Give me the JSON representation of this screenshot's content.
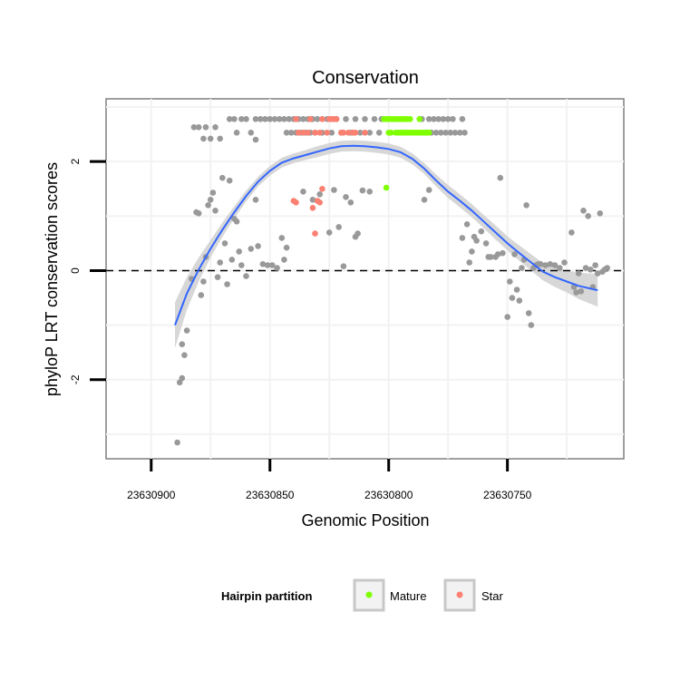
{
  "chart_data": {
    "type": "scatter",
    "title": "Conservation",
    "xlabel": "Genomic Position",
    "ylabel": "phyloP LRT conservation scores",
    "xlim": [
      23630919,
      23630701
    ],
    "xreversed": true,
    "ylim": [
      -3.45,
      3.15
    ],
    "xticks": [
      {
        "value": 23630900,
        "label": "23630900"
      },
      {
        "value": 23630850,
        "label": "23630850"
      },
      {
        "value": 23630800,
        "label": "23630800"
      },
      {
        "value": 23630750,
        "label": "23630750"
      }
    ],
    "yticks": [
      {
        "value": 2,
        "label": "2"
      },
      {
        "value": 0,
        "label": "0"
      },
      {
        "value": -2,
        "label": "-2"
      }
    ],
    "grid": true,
    "reference_line": {
      "y": 0,
      "style": "dashed"
    },
    "colors": {
      "Other": "#999999",
      "Mature": "#7fff00",
      "Star": "#fa8072",
      "smooth": "#3366ff",
      "band": "#d3d3d3"
    },
    "series": [
      {
        "name": "Other",
        "points": [
          [
            23630889,
            -3.15
          ],
          [
            23630888,
            -2.05
          ],
          [
            23630887,
            -1.97
          ],
          [
            23630887,
            -1.35
          ],
          [
            23630886,
            -1.55
          ],
          [
            23630885,
            -1.1
          ],
          [
            23630883,
            -0.15
          ],
          [
            23630881,
            1.07
          ],
          [
            23630880,
            1.05
          ],
          [
            23630879,
            -0.45
          ],
          [
            23630878,
            -0.2
          ],
          [
            23630877,
            0.25
          ],
          [
            23630876,
            1.2
          ],
          [
            23630875,
            1.3
          ],
          [
            23630874,
            1.43
          ],
          [
            23630873,
            1.1
          ],
          [
            23630872,
            -0.12
          ],
          [
            23630871,
            0.15
          ],
          [
            23630870,
            1.7
          ],
          [
            23630869,
            0.5
          ],
          [
            23630868,
            -0.25
          ],
          [
            23630867,
            1.65
          ],
          [
            23630866,
            0.2
          ],
          [
            23630865,
            0.95
          ],
          [
            23630864,
            0.9
          ],
          [
            23630863,
            0.35
          ],
          [
            23630862,
            0.1
          ],
          [
            23630860,
            -0.1
          ],
          [
            23630858,
            0.4
          ],
          [
            23630856,
            1.3
          ],
          [
            23630856,
            2.4
          ],
          [
            23630855,
            0.45
          ],
          [
            23630853,
            0.12
          ],
          [
            23630851,
            0.1
          ],
          [
            23630849,
            0.1
          ],
          [
            23630847,
            0.05
          ],
          [
            23630845,
            0.6
          ],
          [
            23630844,
            0.2
          ],
          [
            23630843,
            0.42
          ],
          [
            23630836,
            1.45
          ],
          [
            23630832,
            1.3
          ],
          [
            23630829,
            1.4
          ],
          [
            23630825,
            0.7
          ],
          [
            23630823,
            1.48
          ],
          [
            23630821,
            0.8
          ],
          [
            23630819,
            0.08
          ],
          [
            23630818,
            1.35
          ],
          [
            23630816,
            1.25
          ],
          [
            23630814,
            0.62
          ],
          [
            23630813,
            0.68
          ],
          [
            23630811,
            1.47
          ],
          [
            23630808,
            1.45
          ],
          [
            23630785,
            1.3
          ],
          [
            23630783,
            1.48
          ],
          [
            23630769,
            0.6
          ],
          [
            23630767,
            0.85
          ],
          [
            23630766,
            0.15
          ],
          [
            23630765,
            0.35
          ],
          [
            23630764,
            0.62
          ],
          [
            23630763,
            0.55
          ],
          [
            23630761,
            0.72
          ],
          [
            23630759,
            0.5
          ],
          [
            23630758,
            0.25
          ],
          [
            23630757,
            0.25
          ],
          [
            23630755,
            0.25
          ],
          [
            23630754,
            0.3
          ],
          [
            23630753,
            1.7
          ],
          [
            23630752,
            0.32
          ],
          [
            23630750,
            -0.85
          ],
          [
            23630749,
            -0.2
          ],
          [
            23630748,
            -0.5
          ],
          [
            23630747,
            0.3
          ],
          [
            23630746,
            -0.35
          ],
          [
            23630745,
            -0.55
          ],
          [
            23630744,
            0.05
          ],
          [
            23630743,
            0.2
          ],
          [
            23630742,
            1.2
          ],
          [
            23630741,
            -0.78
          ],
          [
            23630740,
            -1.0
          ],
          [
            23630739,
            0.05
          ],
          [
            23630738,
            0.1
          ],
          [
            23630737,
            0.12
          ],
          [
            23630736,
            0.12
          ],
          [
            23630734,
            0.1
          ],
          [
            23630732,
            0.12
          ],
          [
            23630730,
            0.1
          ],
          [
            23630728,
            0.05
          ],
          [
            23630726,
            0.15
          ],
          [
            23630723,
            0.7
          ],
          [
            23630722,
            -0.3
          ],
          [
            23630721,
            -0.4
          ],
          [
            23630720,
            -0.05
          ],
          [
            23630719,
            -0.38
          ],
          [
            23630718,
            1.1
          ],
          [
            23630717,
            0.05
          ],
          [
            23630716,
            1.0
          ],
          [
            23630715,
            0.02
          ],
          [
            23630714,
            -0.3
          ],
          [
            23630713,
            0.1
          ],
          [
            23630712,
            -0.05
          ],
          [
            23630711,
            1.05
          ],
          [
            23630710,
            -0.02
          ],
          [
            23630709,
            0.02
          ],
          [
            23630708,
            0.05
          ],
          [
            23630882,
            2.63
          ],
          [
            23630880,
            2.63
          ],
          [
            23630878,
            2.42
          ],
          [
            23630877,
            2.63
          ],
          [
            23630875,
            2.42
          ],
          [
            23630873,
            2.63
          ],
          [
            23630871,
            2.42
          ],
          [
            23630867,
            2.78
          ],
          [
            23630865,
            2.78
          ],
          [
            23630864,
            2.53
          ],
          [
            23630862,
            2.78
          ],
          [
            23630860,
            2.78
          ],
          [
            23630858,
            2.53
          ],
          [
            23630856,
            2.78
          ],
          [
            23630854,
            2.78
          ],
          [
            23630852,
            2.78
          ],
          [
            23630850,
            2.78
          ],
          [
            23630848,
            2.78
          ],
          [
            23630846,
            2.78
          ],
          [
            23630844,
            2.78
          ],
          [
            23630843,
            2.53
          ],
          [
            23630842,
            2.78
          ],
          [
            23630841,
            2.53
          ],
          [
            23630840,
            2.78
          ],
          [
            23630839,
            2.53
          ],
          [
            23630838,
            2.78
          ],
          [
            23630837,
            2.53
          ],
          [
            23630836,
            2.78
          ],
          [
            23630835,
            2.53
          ],
          [
            23630834,
            2.78
          ],
          [
            23630833,
            2.53
          ],
          [
            23630832,
            2.78
          ],
          [
            23630831,
            2.53
          ],
          [
            23630830,
            2.78
          ],
          [
            23630828,
            2.53
          ],
          [
            23630826,
            2.78
          ],
          [
            23630824,
            2.53
          ],
          [
            23630822,
            2.78
          ],
          [
            23630820,
            2.53
          ],
          [
            23630818,
            2.78
          ],
          [
            23630816,
            2.53
          ],
          [
            23630814,
            2.78
          ],
          [
            23630812,
            2.53
          ],
          [
            23630810,
            2.78
          ],
          [
            23630808,
            2.53
          ],
          [
            23630806,
            2.78
          ],
          [
            23630804,
            2.53
          ],
          [
            23630803,
            2.78
          ],
          [
            23630786,
            2.78
          ],
          [
            23630784,
            2.53
          ],
          [
            23630783,
            2.78
          ],
          [
            23630782,
            2.53
          ],
          [
            23630781,
            2.78
          ],
          [
            23630780,
            2.53
          ],
          [
            23630779,
            2.78
          ],
          [
            23630778,
            2.53
          ],
          [
            23630777,
            2.78
          ],
          [
            23630776,
            2.53
          ],
          [
            23630775,
            2.78
          ],
          [
            23630774,
            2.53
          ],
          [
            23630773,
            2.78
          ],
          [
            23630772,
            2.53
          ],
          [
            23630770,
            2.53
          ],
          [
            23630769,
            2.78
          ],
          [
            23630768,
            2.53
          ]
        ]
      },
      {
        "name": "Mature",
        "points": [
          [
            23630801,
            1.52
          ],
          [
            23630802,
            2.78
          ],
          [
            23630801,
            2.78
          ],
          [
            23630800,
            2.78
          ],
          [
            23630799,
            2.78
          ],
          [
            23630798,
            2.78
          ],
          [
            23630797,
            2.78
          ],
          [
            23630796,
            2.78
          ],
          [
            23630795,
            2.78
          ],
          [
            23630794,
            2.78
          ],
          [
            23630793,
            2.78
          ],
          [
            23630792,
            2.78
          ],
          [
            23630791,
            2.78
          ],
          [
            23630787,
            2.78
          ],
          [
            23630800,
            2.53
          ],
          [
            23630799,
            2.53
          ],
          [
            23630797,
            2.53
          ],
          [
            23630796,
            2.53
          ],
          [
            23630795,
            2.53
          ],
          [
            23630794,
            2.53
          ],
          [
            23630793,
            2.53
          ],
          [
            23630792,
            2.53
          ],
          [
            23630791,
            2.53
          ],
          [
            23630790,
            2.53
          ],
          [
            23630789,
            2.53
          ],
          [
            23630788,
            2.53
          ],
          [
            23630787,
            2.53
          ],
          [
            23630786,
            2.53
          ],
          [
            23630785,
            2.53
          ],
          [
            23630784,
            2.53
          ],
          [
            23630783,
            2.53
          ]
        ]
      },
      {
        "name": "Star",
        "points": [
          [
            23630839,
            2.78
          ],
          [
            23630838,
            2.53
          ],
          [
            23630836,
            2.53
          ],
          [
            23630834,
            2.53
          ],
          [
            23630833,
            2.78
          ],
          [
            23630831,
            2.53
          ],
          [
            23630829,
            2.53
          ],
          [
            23630828,
            2.78
          ],
          [
            23630826,
            2.53
          ],
          [
            23630825,
            2.78
          ],
          [
            23630824,
            2.78
          ],
          [
            23630823,
            2.78
          ],
          [
            23630822,
            2.78
          ],
          [
            23630820,
            2.53
          ],
          [
            23630819,
            2.53
          ],
          [
            23630817,
            2.53
          ],
          [
            23630815,
            2.53
          ],
          [
            23630814,
            2.53
          ],
          [
            23630810,
            2.53
          ],
          [
            23630840,
            1.28
          ],
          [
            23630839,
            1.25
          ],
          [
            23630832,
            1.15
          ],
          [
            23630830,
            1.28
          ],
          [
            23630829,
            1.25
          ],
          [
            23630828,
            1.5
          ],
          [
            23630831,
            0.68
          ]
        ]
      }
    ],
    "smooth": [
      [
        23630890,
        -1.0
      ],
      [
        23630885,
        -0.42
      ],
      [
        23630880,
        0.02
      ],
      [
        23630875,
        0.4
      ],
      [
        23630870,
        0.75
      ],
      [
        23630865,
        1.07
      ],
      [
        23630860,
        1.37
      ],
      [
        23630855,
        1.63
      ],
      [
        23630850,
        1.83
      ],
      [
        23630845,
        1.98
      ],
      [
        23630840,
        2.06
      ],
      [
        23630835,
        2.12
      ],
      [
        23630830,
        2.18
      ],
      [
        23630825,
        2.24
      ],
      [
        23630820,
        2.28
      ],
      [
        23630815,
        2.29
      ],
      [
        23630810,
        2.28
      ],
      [
        23630805,
        2.26
      ],
      [
        23630800,
        2.23
      ],
      [
        23630795,
        2.17
      ],
      [
        23630790,
        2.05
      ],
      [
        23630785,
        1.87
      ],
      [
        23630780,
        1.65
      ],
      [
        23630775,
        1.45
      ],
      [
        23630770,
        1.28
      ],
      [
        23630765,
        1.1
      ],
      [
        23630760,
        0.9
      ],
      [
        23630755,
        0.7
      ],
      [
        23630750,
        0.5
      ],
      [
        23630745,
        0.32
      ],
      [
        23630740,
        0.15
      ],
      [
        23630735,
        -0.02
      ],
      [
        23630730,
        -0.12
      ],
      [
        23630725,
        -0.2
      ],
      [
        23630720,
        -0.28
      ],
      [
        23630712,
        -0.36
      ]
    ],
    "band_halfwidth": [
      0.42,
      0.3,
      0.22,
      0.16,
      0.13,
      0.11,
      0.1,
      0.09,
      0.09,
      0.09,
      0.09,
      0.09,
      0.1,
      0.1,
      0.1,
      0.1,
      0.1,
      0.1,
      0.1,
      0.1,
      0.1,
      0.1,
      0.11,
      0.12,
      0.12,
      0.12,
      0.12,
      0.13,
      0.13,
      0.14,
      0.15,
      0.16,
      0.18,
      0.2,
      0.24,
      0.3
    ],
    "legend": {
      "title": "Hairpin partition",
      "placement": "bottom",
      "entries": [
        {
          "label": "Mature",
          "color": "#7fff00"
        },
        {
          "label": "Star",
          "color": "#fa8072"
        }
      ]
    }
  }
}
